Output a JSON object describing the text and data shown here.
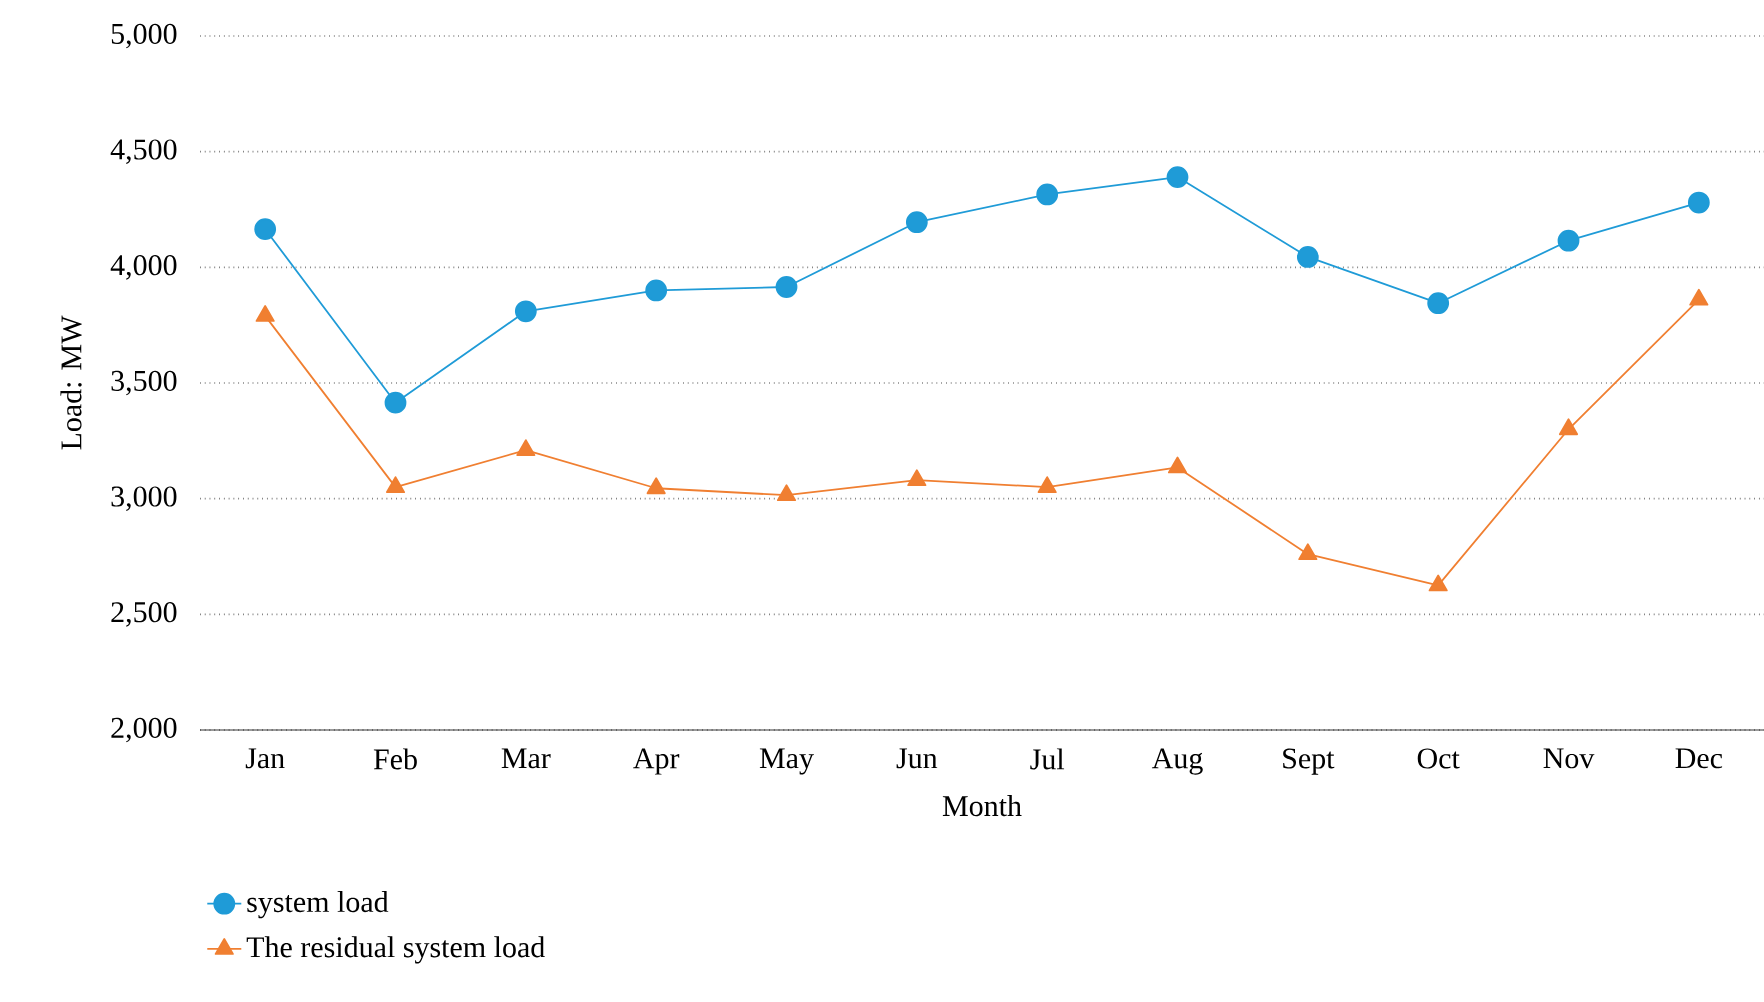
{
  "chart_data": {
    "type": "line",
    "xlabel": "Month",
    "ylabel": "Load: MW",
    "categories": [
      "Jan",
      "Feb",
      "Mar",
      "Apr",
      "May",
      "Jun",
      "Jul",
      "Aug",
      "Sept",
      "Oct",
      "Nov",
      "Dec"
    ],
    "series": [
      {
        "name": "system load",
        "color": "#1f9bd7",
        "marker": "circle",
        "values": [
          4165,
          3415,
          3810,
          3900,
          3915,
          4195,
          4315,
          4390,
          4045,
          3845,
          4115,
          4280
        ]
      },
      {
        "name": "The residual system load",
        "color": "#f07f31",
        "marker": "triangle",
        "values": [
          3790,
          3050,
          3210,
          3045,
          3015,
          3080,
          3050,
          3135,
          2760,
          2625,
          3300,
          3860
        ]
      }
    ],
    "ylim": [
      2000,
      5000
    ],
    "yticks": [
      {
        "value": 2000,
        "label": "2,000"
      },
      {
        "value": 2500,
        "label": "2,500"
      },
      {
        "value": 3000,
        "label": "3,000"
      },
      {
        "value": 3500,
        "label": "3,500"
      },
      {
        "value": 4000,
        "label": "4,000"
      },
      {
        "value": 4500,
        "label": "4,500"
      },
      {
        "value": 5000,
        "label": "5,000"
      }
    ],
    "grid": "y",
    "legend": "bottom left",
    "line_style": "solid"
  }
}
